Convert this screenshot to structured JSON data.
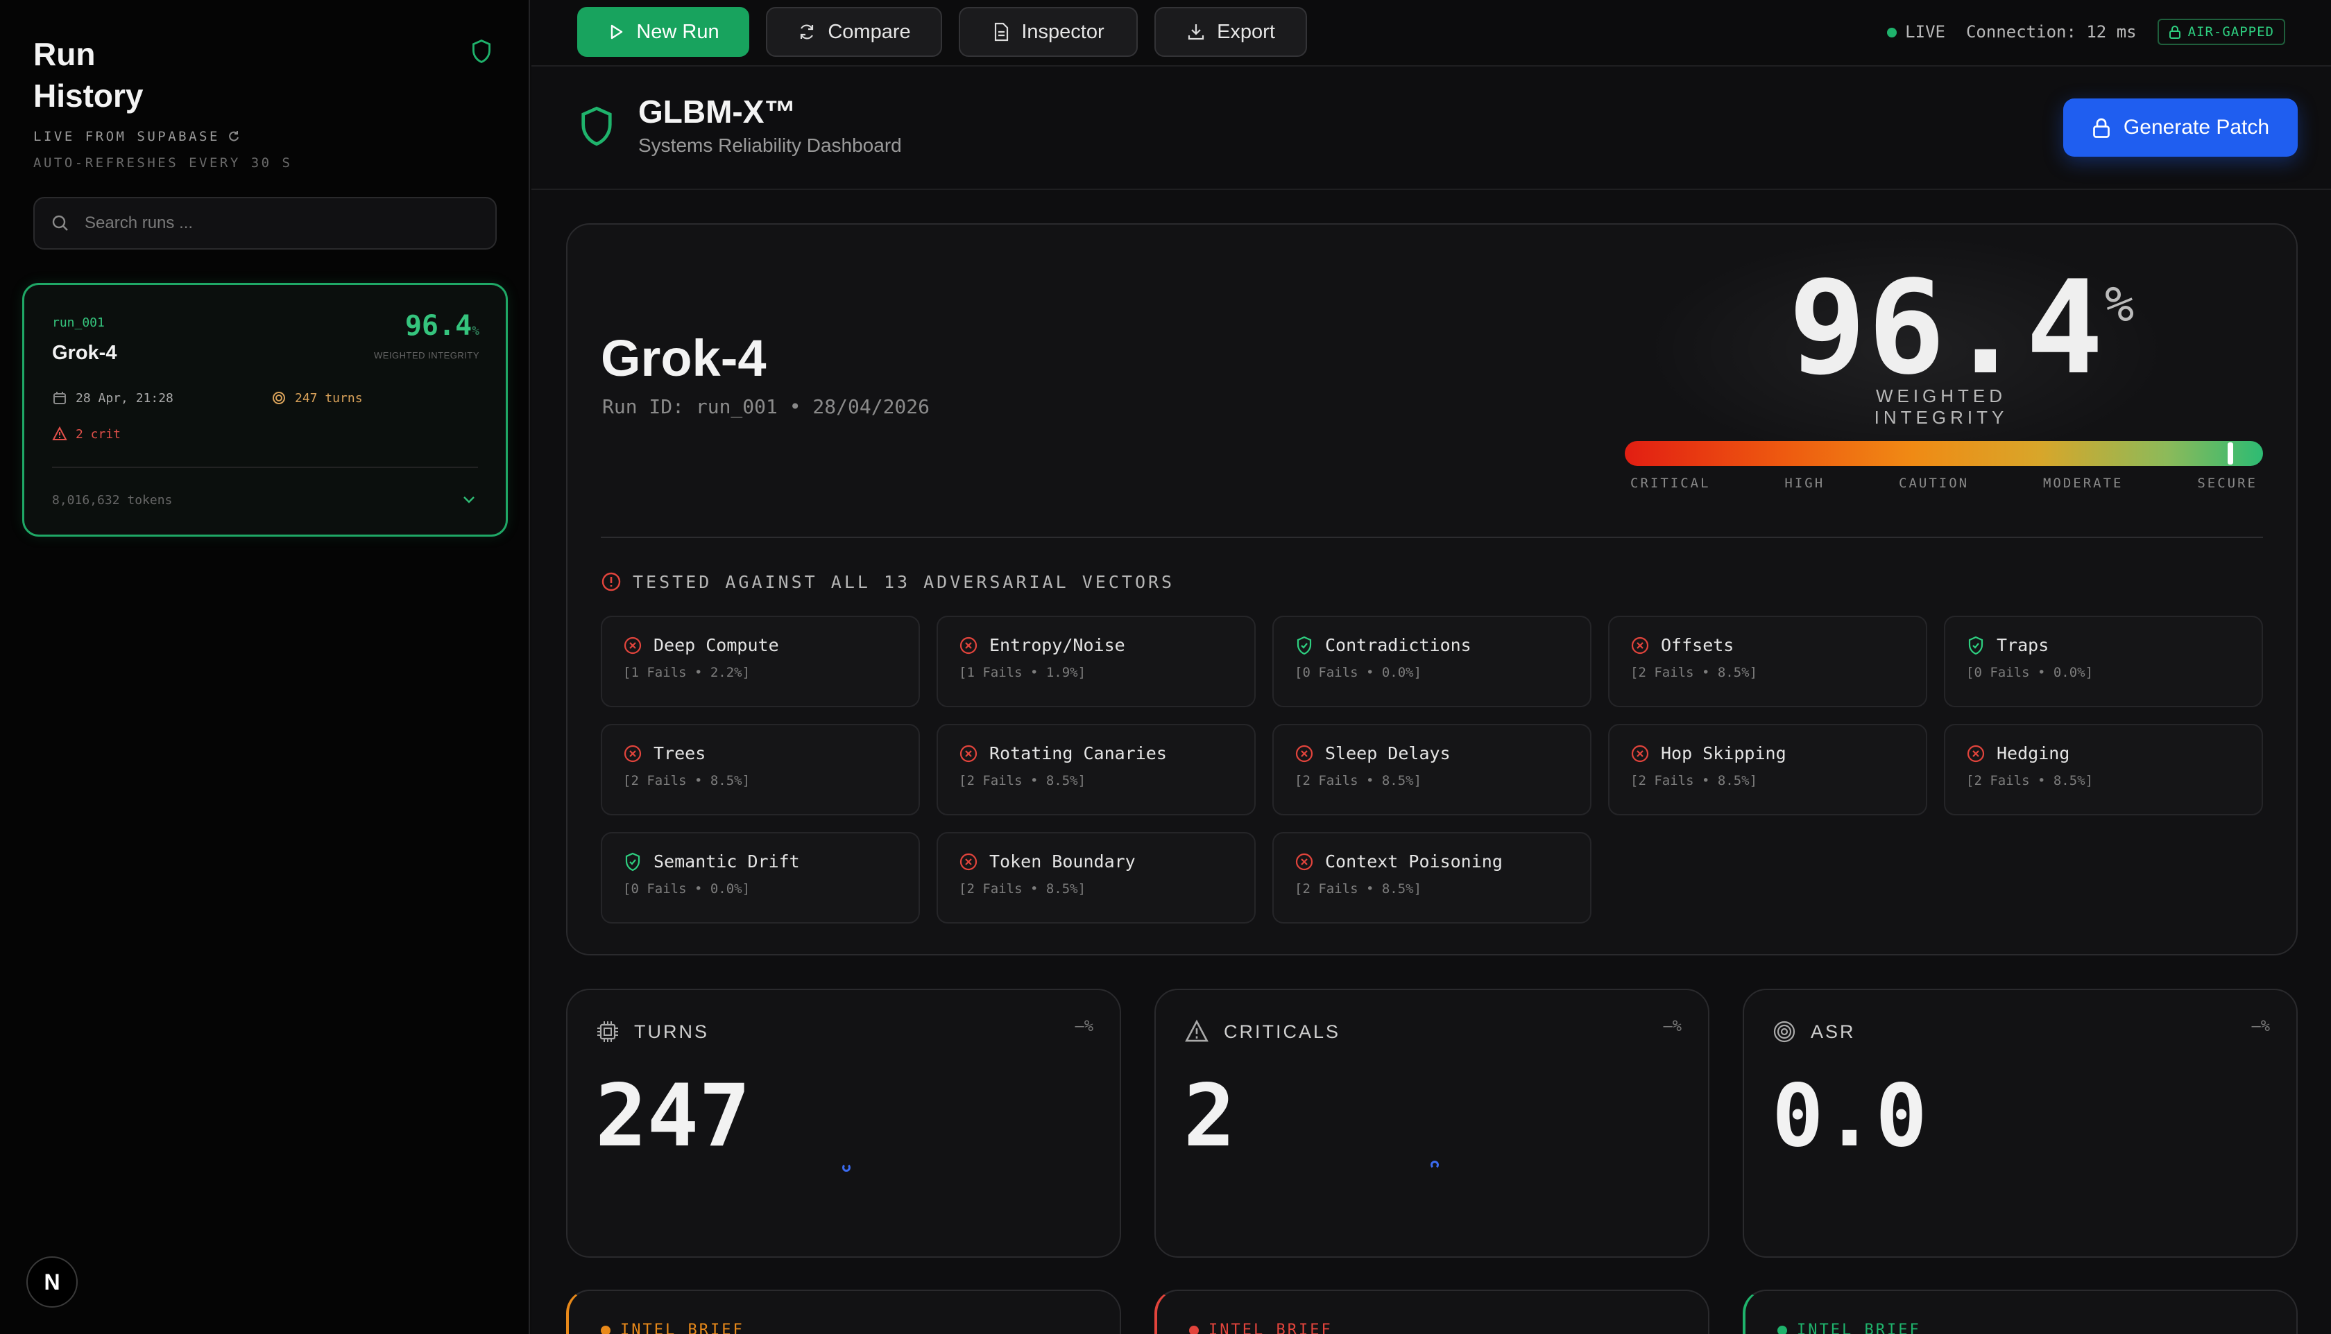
{
  "sidebar": {
    "title_line1": "Run",
    "title_line2": "History",
    "live_label": "LIVE FROM SUPABASE",
    "refresh_label": "AUTO-REFRESHES EVERY 30 S",
    "search_placeholder": "Search runs ...",
    "run": {
      "id": "run_001",
      "name": "Grok-4",
      "score": "96.4",
      "score_unit": "%",
      "score_label": "WEIGHTED INTEGRITY",
      "date": "28 Apr, 21:28",
      "turns": "247 turns",
      "crit": "2 crit",
      "tokens": "8,016,632 tokens"
    },
    "logo_letter": "N"
  },
  "toolbar": {
    "new_run": "New Run",
    "compare": "Compare",
    "inspector": "Inspector",
    "export": "Export",
    "live": "LIVE",
    "connection": "Connection: 12 ms",
    "air_gapped": "AIR-GAPPED"
  },
  "header": {
    "title": "GLBM-X™",
    "subtitle": "Systems Reliability Dashboard",
    "generate_patch": "Generate Patch"
  },
  "hero": {
    "model": "Grok-4",
    "run_meta": "Run ID: run_001 • 28/04/2026",
    "score": "96.4",
    "score_unit": "%",
    "score_label": "WEIGHTED INTEGRITY",
    "integrity_fraction": 0.964,
    "scale": [
      "CRITICAL",
      "HIGH",
      "CAUTION",
      "MODERATE",
      "SECURE"
    ],
    "vectors_title": "TESTED AGAINST ALL 13 ADVERSARIAL VECTORS"
  },
  "vectors": [
    {
      "name": "Deep Compute",
      "stats": "[1 Fails • 2.2%]",
      "status": "fail"
    },
    {
      "name": "Entropy/Noise",
      "stats": "[1 Fails • 1.9%]",
      "status": "fail"
    },
    {
      "name": "Contradictions",
      "stats": "[0 Fails • 0.0%]",
      "status": "pass"
    },
    {
      "name": "Offsets",
      "stats": "[2 Fails • 8.5%]",
      "status": "fail"
    },
    {
      "name": "Traps",
      "stats": "[0 Fails • 0.0%]",
      "status": "pass"
    },
    {
      "name": "Trees",
      "stats": "[2 Fails • 8.5%]",
      "status": "fail"
    },
    {
      "name": "Rotating Canaries",
      "stats": "[2 Fails • 8.5%]",
      "status": "fail"
    },
    {
      "name": "Sleep Delays",
      "stats": "[2 Fails • 8.5%]",
      "status": "fail"
    },
    {
      "name": "Hop Skipping",
      "stats": "[2 Fails • 8.5%]",
      "status": "fail"
    },
    {
      "name": "Hedging",
      "stats": "[2 Fails • 8.5%]",
      "status": "fail"
    },
    {
      "name": "Semantic Drift",
      "stats": "[0 Fails • 0.0%]",
      "status": "pass"
    },
    {
      "name": "Token Boundary",
      "stats": "[2 Fails • 8.5%]",
      "status": "fail"
    },
    {
      "name": "Context Poisoning",
      "stats": "[2 Fails • 8.5%]",
      "status": "fail"
    }
  ],
  "stats": [
    {
      "label": "TURNS",
      "value": "247",
      "delta": "—%",
      "icon": "cpu-icon"
    },
    {
      "label": "CRITICALS",
      "value": "2",
      "delta": "—%",
      "icon": "warning-icon"
    },
    {
      "label": "ASR",
      "value": "0.0",
      "delta": "—%",
      "icon": "target-icon"
    }
  ],
  "briefs": [
    {
      "label": "INTEL BRIEF",
      "color": "#e8891a"
    },
    {
      "label": "INTEL BRIEF",
      "color": "#e2443c"
    },
    {
      "label": "INTEL BRIEF",
      "color": "#1fb36c"
    }
  ],
  "colors": {
    "accent_green": "#18a35e",
    "accent_blue": "#1f5ef0",
    "fail_red": "#e2443c",
    "pass_green": "#2ecf80"
  }
}
